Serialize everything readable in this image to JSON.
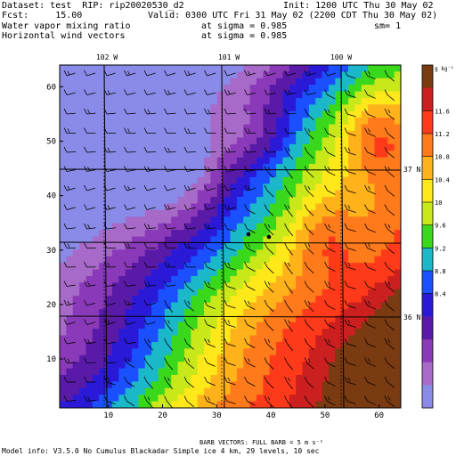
{
  "header": {
    "dataset": "Dataset: test  RIP: rip20020530_d2",
    "init": "Init: 1200 UTC Thu 30 May 02",
    "fcst": "Fcst:     15.00",
    "valid": "Valid: 0300 UTC Fri 31 May 02 (2200 CDT Thu 30 May 02)",
    "field1": "Water vapor mixing ratio",
    "field1_sigma": "at sigma = 0.985",
    "field1_sm": "sm= 1",
    "field2": "Horizontal wind vectors",
    "field2_sigma": "at sigma = 0.985"
  },
  "footer": {
    "barb_note": "BARB VECTORS:  FULL BARB = 5 m s⁻¹",
    "model_info": "Model info: V3.5.0 No Cumulus Blackadar  Simple ice    4 km,  29 levels,   10 sec"
  },
  "chart_data": {
    "type": "heatmap",
    "title": "Water vapor mixing ratio at sigma = 0.985",
    "x_ticks": [
      10,
      20,
      30,
      40,
      50,
      60
    ],
    "y_ticks": [
      10,
      20,
      30,
      40,
      50,
      60
    ],
    "xlim": [
      1,
      64
    ],
    "ylim": [
      1,
      64
    ],
    "lon_labels": [
      "102 W",
      "101 W",
      "100 W"
    ],
    "lat_labels": [
      "37 N",
      "36 N"
    ],
    "colorbar": {
      "unit_label": "g kg⁻¹",
      "levels": [
        "11.6",
        "11.2",
        "10.8",
        "10.4",
        "10",
        "9.6",
        "9.2",
        "8.8",
        "8.4"
      ],
      "colors": [
        "#7a3a12",
        "#cc2020",
        "#ff3a1a",
        "#ff7a1a",
        "#ffb21a",
        "#ffe81a",
        "#c8e81a",
        "#3ad81a",
        "#1ab8c8",
        "#1a50ff",
        "#2a1ad8",
        "#5a1aa8",
        "#8a3ab8",
        "#a86ac8",
        "#8a8ae8"
      ]
    },
    "contour_values": [
      "8.4",
      "8.8",
      "9.2",
      "9.6",
      "10",
      "10.4",
      "10.8",
      "11.2",
      "11.6"
    ],
    "grid": true
  }
}
